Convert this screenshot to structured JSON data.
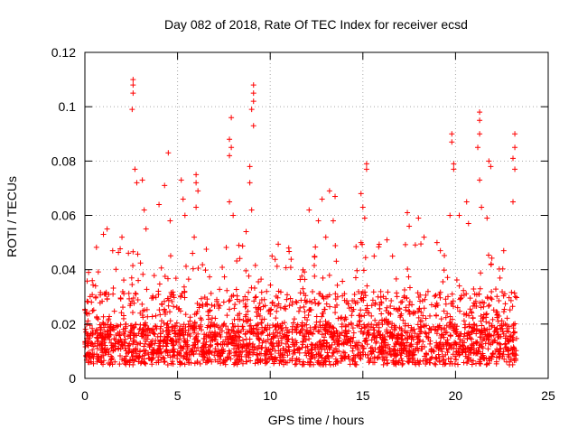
{
  "chart_data": {
    "type": "scatter",
    "title": "Day 082 of 2018, Rate Of TEC Index for receiver ecsd",
    "xlabel": "GPS time / hours",
    "ylabel": "ROTI / TECUs",
    "xlim": [
      0,
      25
    ],
    "ylim": [
      0,
      0.12
    ],
    "x_ticks": [
      0,
      5,
      10,
      15,
      20,
      25
    ],
    "x_tick_labels": [
      "0",
      "5",
      "10",
      "15",
      "20",
      "25"
    ],
    "y_ticks": [
      0,
      0.02,
      0.04,
      0.06,
      0.08,
      0.1,
      0.12
    ],
    "y_tick_labels": [
      "0",
      "0.02",
      "0.04",
      "0.06",
      "0.08",
      "0.1",
      "0.12"
    ],
    "grid": true,
    "marker": "+",
    "series": [
      {
        "name": "ROTI",
        "color": "#ff0000",
        "x_range": [
          0,
          23.3
        ],
        "typical_range": [
          0.005,
          0.02
        ],
        "points": [
          {
            "x": 2.6,
            "y": 0.11
          },
          {
            "x": 2.6,
            "y": 0.108
          },
          {
            "x": 2.6,
            "y": 0.105
          },
          {
            "x": 2.55,
            "y": 0.099
          },
          {
            "x": 2.7,
            "y": 0.077
          },
          {
            "x": 3.1,
            "y": 0.073
          },
          {
            "x": 2.8,
            "y": 0.072
          },
          {
            "x": 3.2,
            "y": 0.062
          },
          {
            "x": 3.3,
            "y": 0.055
          },
          {
            "x": 4.5,
            "y": 0.083
          },
          {
            "x": 4.3,
            "y": 0.071
          },
          {
            "x": 4.0,
            "y": 0.064
          },
          {
            "x": 4.6,
            "y": 0.058
          },
          {
            "x": 5.2,
            "y": 0.073
          },
          {
            "x": 5.3,
            "y": 0.066
          },
          {
            "x": 5.4,
            "y": 0.06
          },
          {
            "x": 6.0,
            "y": 0.075
          },
          {
            "x": 6.0,
            "y": 0.072
          },
          {
            "x": 6.1,
            "y": 0.069
          },
          {
            "x": 6.0,
            "y": 0.063
          },
          {
            "x": 5.9,
            "y": 0.052
          },
          {
            "x": 7.9,
            "y": 0.096
          },
          {
            "x": 7.8,
            "y": 0.088
          },
          {
            "x": 7.9,
            "y": 0.085
          },
          {
            "x": 7.8,
            "y": 0.082
          },
          {
            "x": 7.8,
            "y": 0.065
          },
          {
            "x": 8.0,
            "y": 0.06
          },
          {
            "x": 9.1,
            "y": 0.108
          },
          {
            "x": 9.1,
            "y": 0.105
          },
          {
            "x": 9.1,
            "y": 0.102
          },
          {
            "x": 9.0,
            "y": 0.099
          },
          {
            "x": 9.1,
            "y": 0.093
          },
          {
            "x": 8.9,
            "y": 0.078
          },
          {
            "x": 8.9,
            "y": 0.072
          },
          {
            "x": 9.0,
            "y": 0.062
          },
          {
            "x": 8.7,
            "y": 0.054
          },
          {
            "x": 10.1,
            "y": 0.045
          },
          {
            "x": 11.0,
            "y": 0.048
          },
          {
            "x": 12.1,
            "y": 0.062
          },
          {
            "x": 12.6,
            "y": 0.058
          },
          {
            "x": 12.8,
            "y": 0.066
          },
          {
            "x": 13.2,
            "y": 0.069
          },
          {
            "x": 13.5,
            "y": 0.067
          },
          {
            "x": 13.4,
            "y": 0.058
          },
          {
            "x": 13.0,
            "y": 0.052
          },
          {
            "x": 15.2,
            "y": 0.079
          },
          {
            "x": 15.2,
            "y": 0.077
          },
          {
            "x": 14.9,
            "y": 0.068
          },
          {
            "x": 15.0,
            "y": 0.063
          },
          {
            "x": 15.1,
            "y": 0.059
          },
          {
            "x": 14.9,
            "y": 0.05
          },
          {
            "x": 16.3,
            "y": 0.051
          },
          {
            "x": 16.6,
            "y": 0.045
          },
          {
            "x": 17.4,
            "y": 0.061
          },
          {
            "x": 17.5,
            "y": 0.056
          },
          {
            "x": 18.0,
            "y": 0.059
          },
          {
            "x": 18.3,
            "y": 0.052
          },
          {
            "x": 19.0,
            "y": 0.05
          },
          {
            "x": 19.8,
            "y": 0.09
          },
          {
            "x": 19.8,
            "y": 0.087
          },
          {
            "x": 19.9,
            "y": 0.079
          },
          {
            "x": 19.9,
            "y": 0.077
          },
          {
            "x": 19.7,
            "y": 0.06
          },
          {
            "x": 20.2,
            "y": 0.06
          },
          {
            "x": 20.6,
            "y": 0.065
          },
          {
            "x": 20.7,
            "y": 0.057
          },
          {
            "x": 21.3,
            "y": 0.098
          },
          {
            "x": 21.3,
            "y": 0.095
          },
          {
            "x": 21.3,
            "y": 0.09
          },
          {
            "x": 21.2,
            "y": 0.085
          },
          {
            "x": 21.3,
            "y": 0.073
          },
          {
            "x": 21.4,
            "y": 0.063
          },
          {
            "x": 21.8,
            "y": 0.08
          },
          {
            "x": 21.9,
            "y": 0.078
          },
          {
            "x": 21.7,
            "y": 0.059
          },
          {
            "x": 23.2,
            "y": 0.09
          },
          {
            "x": 23.2,
            "y": 0.085
          },
          {
            "x": 23.1,
            "y": 0.081
          },
          {
            "x": 23.2,
            "y": 0.077
          },
          {
            "x": 23.1,
            "y": 0.065
          },
          {
            "x": 22.6,
            "y": 0.047
          },
          {
            "x": 0.2,
            "y": 0.039
          },
          {
            "x": 0.4,
            "y": 0.036
          },
          {
            "x": 1.0,
            "y": 0.053
          },
          {
            "x": 1.2,
            "y": 0.055
          },
          {
            "x": 1.5,
            "y": 0.047
          },
          {
            "x": 2.0,
            "y": 0.052
          }
        ]
      }
    ]
  }
}
